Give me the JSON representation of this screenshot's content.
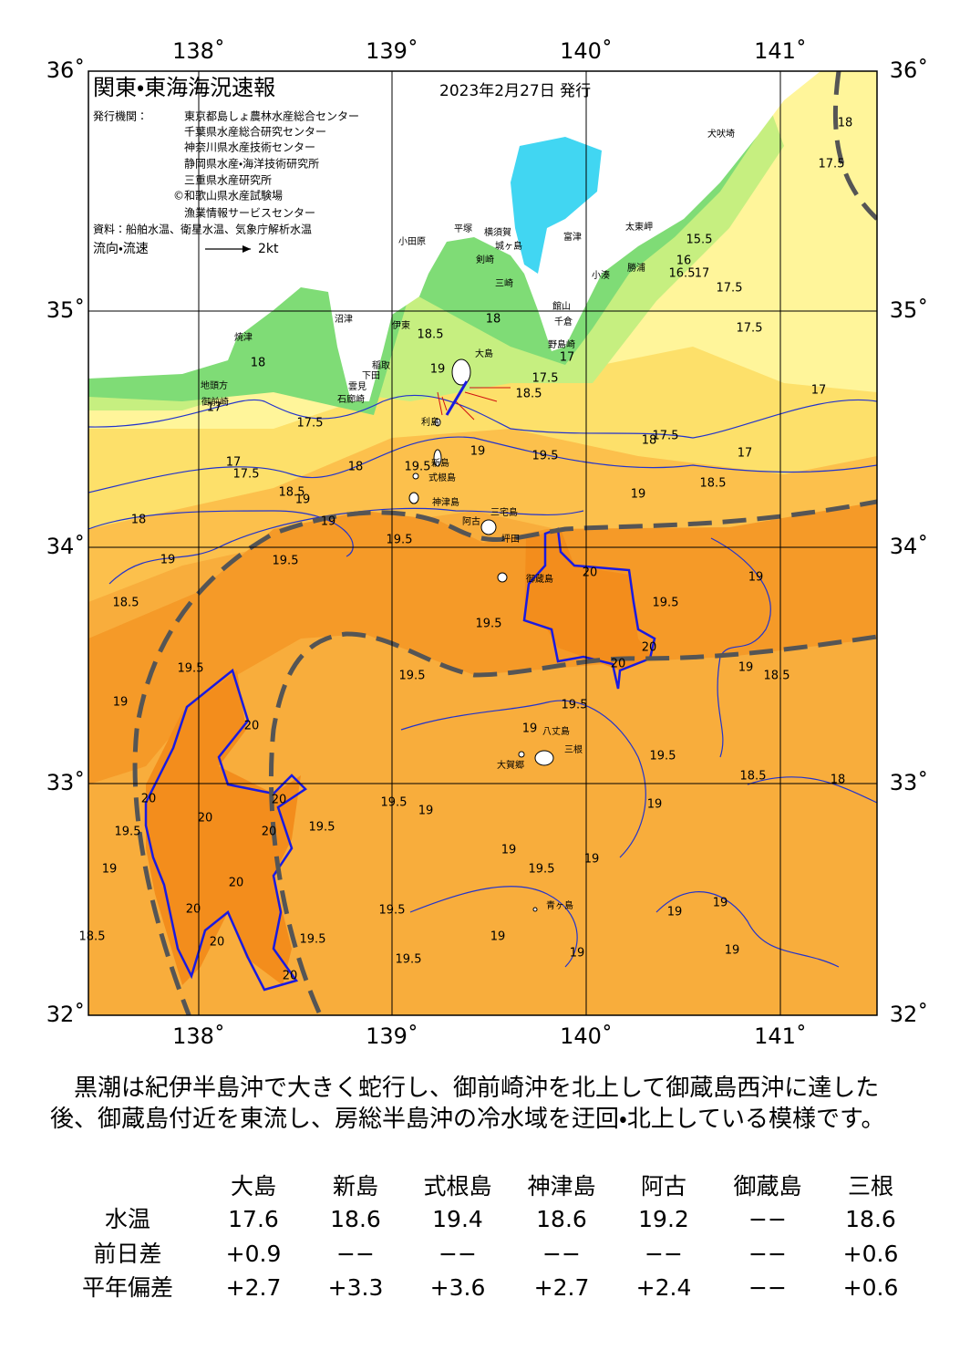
{
  "map": {
    "title": "関東・東海海況速報",
    "date": "2023年2月27日 発行",
    "issuer_label": "発行機関：",
    "issuers": [
      "東京都島しょ農林水産総合センター",
      "千葉県水産総合研究センター",
      "神奈川県水産技術センター",
      "静岡県水産・海洋技術研究所",
      "三重県水産研究所",
      "©和歌山県水産試験場",
      "漁業情報サービスセンター"
    ],
    "source": "資料：船舶水温、衛星水温、気象庁解析水温",
    "legend": {
      "label": "流向・流速",
      "scale": "2kt"
    },
    "longitude_labels": [
      "138˚",
      "139˚",
      "140˚",
      "141˚"
    ],
    "latitude_labels": [
      "36˚",
      "35˚",
      "34˚",
      "33˚",
      "32˚"
    ],
    "place_names": [
      "犬吠埼",
      "太東岬",
      "小湊",
      "勝浦",
      "館山",
      "千倉",
      "野島崎",
      "富津",
      "横須賀",
      "城ヶ島",
      "剣崎",
      "三崎",
      "平塚",
      "小田原",
      "沼津",
      "伊東",
      "焼津",
      "地頭方",
      "御前崎",
      "石廊崎",
      "下田",
      "稲取",
      "雲見",
      "大島",
      "利島",
      "新島",
      "式根島",
      "神津島",
      "三宅島",
      "阿古",
      "坪田",
      "御蔵島",
      "八丈島",
      "三根",
      "大賀郷",
      "青ヶ島"
    ],
    "contour_labels": [
      "18.5",
      "18",
      "19",
      "17.5",
      "18.5",
      "17",
      "18",
      "17",
      "17.5",
      "17",
      "17.5",
      "18",
      "18.5",
      "19",
      "19.5",
      "19",
      "19.5",
      "18",
      "17.5",
      "17",
      "18.5",
      "19",
      "17",
      "17.5",
      "17.5",
      "16.5",
      "16",
      "17",
      "15.5",
      "17.5",
      "18",
      "18",
      "19",
      "19",
      "19.5",
      "19.5",
      "18.5",
      "19.5",
      "19",
      "19.5",
      "20",
      "20",
      "20",
      "19",
      "18.5",
      "19.5",
      "19.5",
      "19",
      "20",
      "19.5",
      "19",
      "19.5",
      "18.5",
      "18",
      "20",
      "20",
      "19.5",
      "19.5",
      "19",
      "19.5",
      "20",
      "20",
      "19",
      "19",
      "20",
      "19",
      "19.5",
      "19",
      "19.5",
      "20",
      "19",
      "19",
      "19",
      "19",
      "19.5",
      "18.5",
      "20",
      "19.5",
      "19",
      "20"
    ]
  },
  "summary": "黒潮は紀伊半島沖で大きく蛇行し、御前崎沖を北上して御蔵島西沖に達した後、御蔵島付近を東流し、房総半島沖の冷水域を迂回・北上している模様です。",
  "table": {
    "columns": [
      "大島",
      "新島",
      "式根島",
      "神津島",
      "阿古",
      "御蔵島",
      "三根"
    ],
    "rows": [
      {
        "label": "水温",
        "values": [
          "17.6",
          "18.6",
          "19.4",
          "18.6",
          "19.2",
          "−−",
          "18.6"
        ]
      },
      {
        "label": "前日差",
        "values": [
          "+0.9",
          "−−",
          "−−",
          "−−",
          "−−",
          "−−",
          "+0.6"
        ]
      },
      {
        "label": "平年偏差",
        "values": [
          "+2.7",
          "+3.3",
          "+3.6",
          "+2.7",
          "+2.4",
          "−−",
          "+0.6"
        ]
      }
    ]
  }
}
